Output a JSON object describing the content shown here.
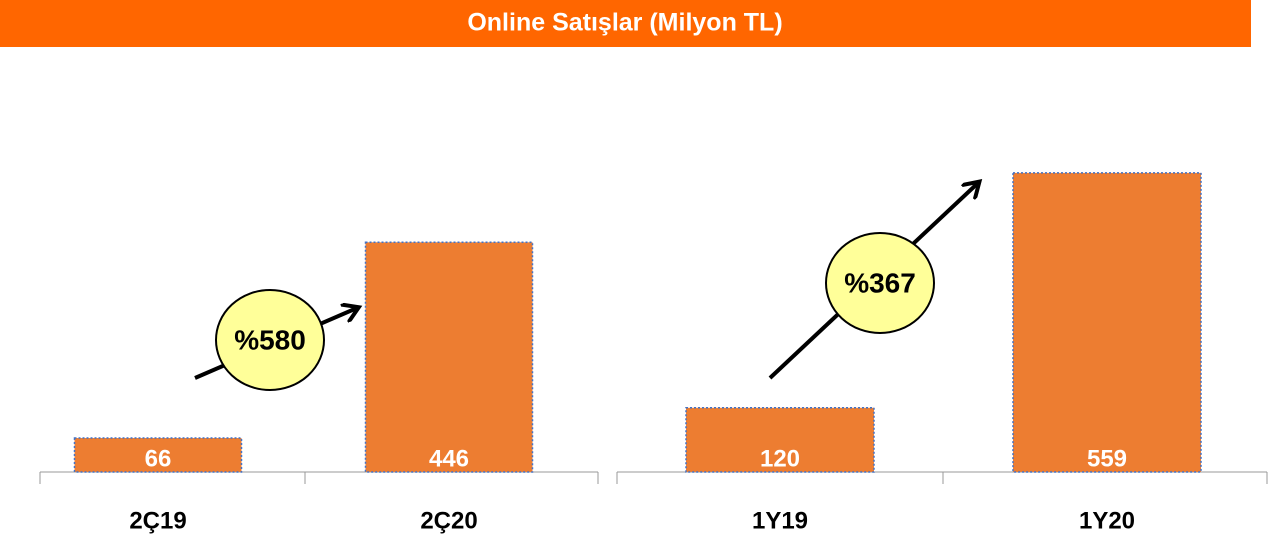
{
  "title": "Online Satışlar (Milyon TL)",
  "chart_data": [
    {
      "type": "bar",
      "categories": [
        "2Ç19",
        "2Ç20"
      ],
      "values": [
        66,
        446
      ],
      "color": "#ed7d31",
      "ylim": [
        0,
        800
      ],
      "annotation": "%580"
    },
    {
      "type": "bar",
      "categories": [
        "1Y19",
        "1Y20"
      ],
      "values": [
        120,
        559
      ],
      "color": "#ed7d31",
      "ylim": [
        0,
        770
      ],
      "annotation": "%367"
    }
  ]
}
